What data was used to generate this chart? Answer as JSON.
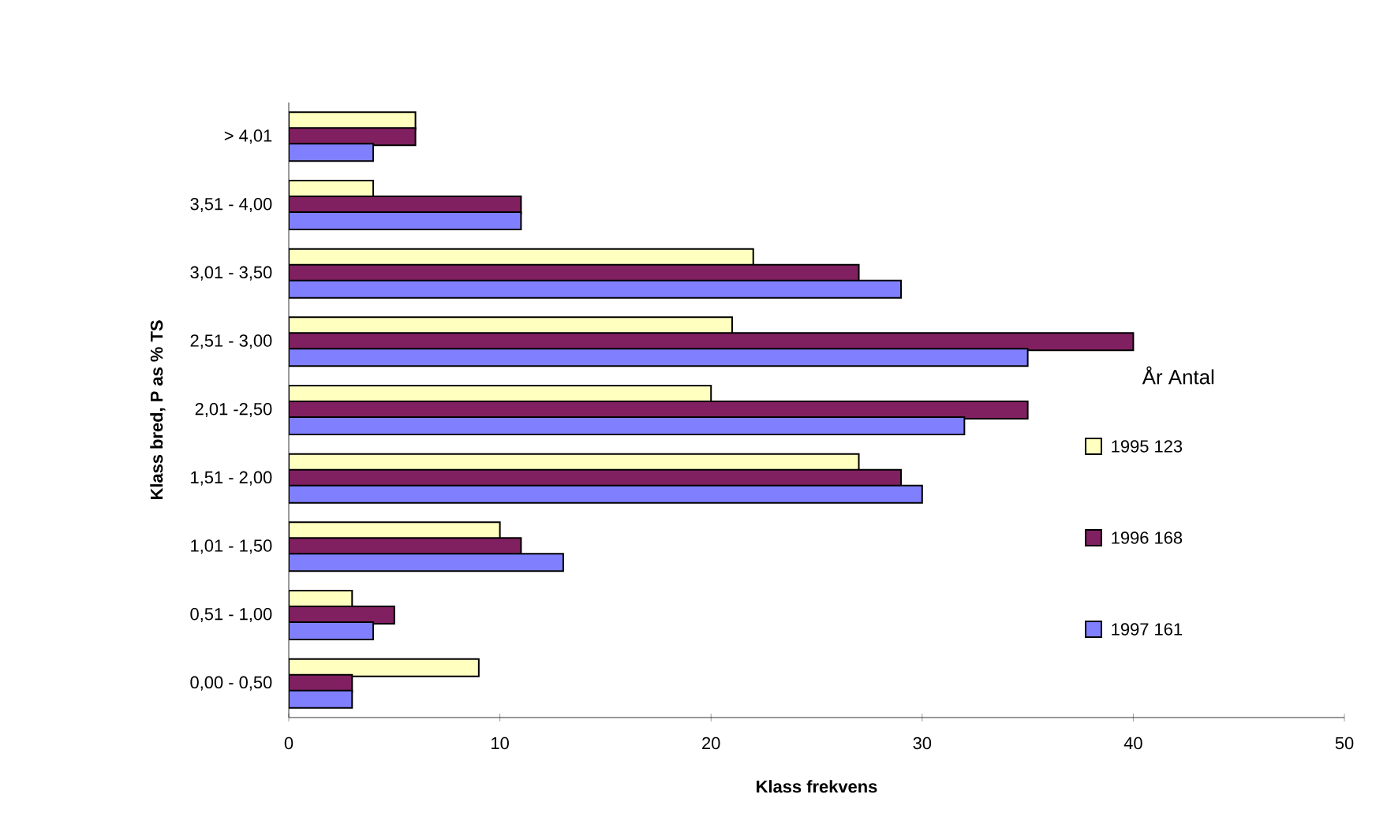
{
  "chart_data": {
    "type": "bar",
    "orientation": "horizontal",
    "xlabel": "Klass frekvens",
    "ylabel": "Klass bred, P as % TS",
    "legend_title": "År Antal",
    "legend": "right",
    "categories": [
      "> 4,01",
      "3,51 - 4,00",
      "3,01 - 3,50",
      "2,51 - 3,00",
      "2,01 -2,50",
      "1,51 - 2,00",
      "1,01 - 1,50",
      "0,51 - 1,00",
      "0,00 - 0,50"
    ],
    "series": [
      {
        "name": "1995 123",
        "color": "#ffffc0",
        "values": [
          6,
          4,
          22,
          21,
          20,
          27,
          10,
          3,
          9
        ]
      },
      {
        "name": "1996 168",
        "color": "#802060",
        "values": [
          6,
          11,
          27,
          40,
          35,
          29,
          11,
          5,
          3
        ]
      },
      {
        "name": "1997 161",
        "color": "#8080ff",
        "values": [
          4,
          11,
          29,
          35,
          32,
          30,
          13,
          4,
          3
        ]
      }
    ],
    "xlim": [
      0,
      50
    ],
    "xticks": [
      0,
      10,
      20,
      30,
      40,
      50
    ],
    "grid": false
  }
}
